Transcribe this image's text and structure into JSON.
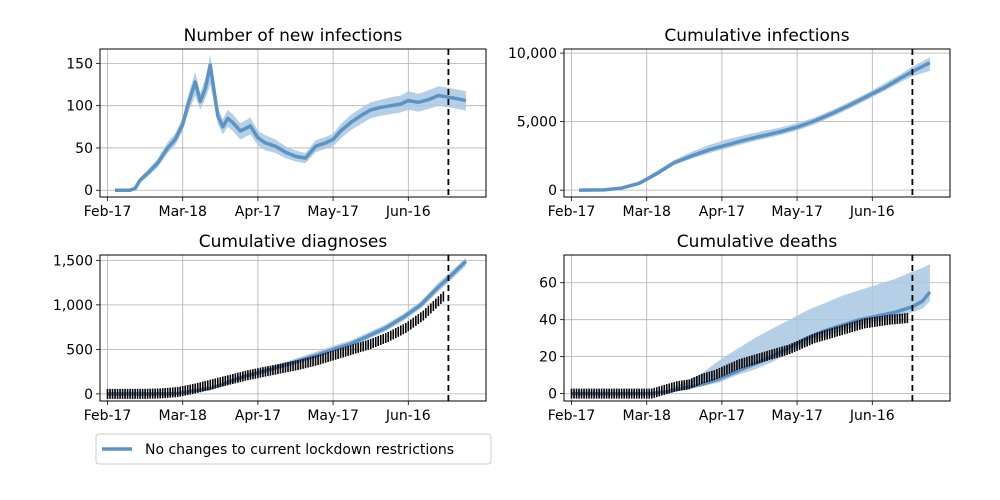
{
  "colors": {
    "model_line": "#5b93c5",
    "model_band": "#a8c8e2",
    "observed": "#000000",
    "grid": "#b0b0b0",
    "axis": "#000000",
    "marker_line": "#000000"
  },
  "legend": {
    "label": "No changes to current lockdown restrictions",
    "placement": "bottom-left"
  },
  "chart_data": [
    {
      "type": "line",
      "title": "Number of new infections",
      "x_ticks": [
        "Feb-17",
        "Mar-18",
        "Apr-17",
        "May-17",
        "Jun-16"
      ],
      "y_ticks": [
        "0",
        "50",
        "100",
        "150"
      ],
      "x_range": [
        "2020-02-17",
        "2020-07-09"
      ],
      "ylim": [
        -8,
        167
      ],
      "grid": true,
      "vline_date": "2020-07-02",
      "series": [
        {
          "name": "No changes to current lockdown restrictions",
          "x": [
            "2020-02-20",
            "2020-02-26",
            "2020-02-28",
            "2020-03-01",
            "2020-03-04",
            "2020-03-08",
            "2020-03-12",
            "2020-03-15",
            "2020-03-18",
            "2020-03-20",
            "2020-03-23",
            "2020-03-25",
            "2020-03-27",
            "2020-03-29",
            "2020-04-01",
            "2020-04-03",
            "2020-04-05",
            "2020-04-07",
            "2020-04-10",
            "2020-04-14",
            "2020-04-17",
            "2020-04-20",
            "2020-04-24",
            "2020-04-28",
            "2020-05-02",
            "2020-05-06",
            "2020-05-10",
            "2020-05-14",
            "2020-05-17",
            "2020-05-20",
            "2020-05-24",
            "2020-05-28",
            "2020-06-01",
            "2020-06-05",
            "2020-06-09",
            "2020-06-13",
            "2020-06-16",
            "2020-06-20",
            "2020-06-24",
            "2020-06-28",
            "2020-07-02",
            "2020-07-06",
            "2020-07-09"
          ],
          "values": [
            0,
            0,
            2,
            12,
            20,
            32,
            50,
            60,
            78,
            100,
            128,
            105,
            120,
            148,
            88,
            75,
            85,
            80,
            70,
            76,
            62,
            56,
            52,
            45,
            40,
            38,
            52,
            56,
            60,
            70,
            80,
            88,
            95,
            98,
            100,
            102,
            106,
            104,
            107,
            112,
            110,
            108,
            106
          ],
          "lower": [
            0,
            0,
            1,
            9,
            16,
            27,
            44,
            53,
            70,
            90,
            112,
            95,
            108,
            125,
            78,
            66,
            75,
            70,
            60,
            66,
            53,
            47,
            44,
            38,
            34,
            32,
            45,
            49,
            52,
            61,
            71,
            78,
            85,
            88,
            90,
            92,
            95,
            93,
            96,
            100,
            98,
            96,
            94
          ],
          "upper": [
            0,
            0,
            3,
            15,
            24,
            37,
            57,
            67,
            86,
            110,
            140,
            115,
            132,
            160,
            98,
            84,
            95,
            90,
            79,
            86,
            70,
            65,
            60,
            52,
            47,
            44,
            59,
            63,
            67,
            78,
            89,
            97,
            104,
            107,
            110,
            112,
            117,
            114,
            118,
            123,
            121,
            119,
            117
          ]
        }
      ],
      "observed": null
    },
    {
      "type": "line",
      "title": "Cumulative infections",
      "x_ticks": [
        "Feb-17",
        "Mar-18",
        "Apr-17",
        "May-17",
        "Jun-16"
      ],
      "y_ticks": [
        "0",
        "5,000",
        "10,000"
      ],
      "x_range": [
        "2020-02-17",
        "2020-07-09"
      ],
      "ylim": [
        -500,
        10300
      ],
      "grid": true,
      "vline_date": "2020-07-02",
      "series": [
        {
          "name": "No changes to current lockdown restrictions",
          "x": [
            "2020-02-20",
            "2020-03-01",
            "2020-03-08",
            "2020-03-15",
            "2020-03-22",
            "2020-03-29",
            "2020-04-05",
            "2020-04-12",
            "2020-04-19",
            "2020-04-26",
            "2020-05-03",
            "2020-05-10",
            "2020-05-17",
            "2020-05-24",
            "2020-05-31",
            "2020-06-07",
            "2020-06-14",
            "2020-06-21",
            "2020-06-28",
            "2020-07-02",
            "2020-07-09"
          ],
          "values": [
            0,
            20,
            150,
            500,
            1200,
            2000,
            2500,
            2950,
            3300,
            3650,
            3950,
            4250,
            4600,
            5050,
            5600,
            6200,
            6850,
            7500,
            8250,
            8650,
            9300
          ],
          "lower": [
            0,
            15,
            120,
            420,
            1050,
            1850,
            2300,
            2700,
            3050,
            3400,
            3700,
            4000,
            4350,
            4800,
            5350,
            5950,
            6600,
            7250,
            7950,
            8300,
            8700
          ],
          "upper": [
            0,
            25,
            180,
            600,
            1400,
            2200,
            2800,
            3300,
            3700,
            4000,
            4300,
            4550,
            4900,
            5300,
            5850,
            6450,
            7100,
            7800,
            8550,
            9000,
            9700
          ]
        }
      ],
      "observed": null
    },
    {
      "type": "line",
      "title": "Cumulative diagnoses",
      "x_ticks": [
        "Feb-17",
        "Mar-18",
        "Apr-17",
        "May-17",
        "Jun-16"
      ],
      "y_ticks": [
        "0",
        "500",
        "1,000",
        "1,500"
      ],
      "x_range": [
        "2020-02-17",
        "2020-07-09"
      ],
      "ylim": [
        -80,
        1560
      ],
      "grid": true,
      "vline_date": "2020-07-02",
      "series": [
        {
          "name": "No changes to current lockdown restrictions",
          "x": [
            "2020-02-17",
            "2020-03-01",
            "2020-03-15",
            "2020-03-29",
            "2020-04-05",
            "2020-04-12",
            "2020-04-19",
            "2020-04-26",
            "2020-05-03",
            "2020-05-10",
            "2020-05-17",
            "2020-05-24",
            "2020-05-31",
            "2020-06-07",
            "2020-06-14",
            "2020-06-21",
            "2020-06-28",
            "2020-07-02",
            "2020-07-09"
          ],
          "values": [
            0,
            0,
            2,
            60,
            130,
            200,
            250,
            310,
            370,
            430,
            500,
            560,
            650,
            740,
            860,
            1000,
            1200,
            1300,
            1490
          ],
          "lower": [
            0,
            0,
            1,
            45,
            110,
            180,
            230,
            285,
            340,
            400,
            470,
            530,
            615,
            705,
            820,
            960,
            1150,
            1250,
            1440
          ],
          "upper": [
            0,
            0,
            3,
            75,
            150,
            220,
            275,
            340,
            405,
            470,
            540,
            600,
            690,
            780,
            900,
            1040,
            1250,
            1350,
            1530
          ]
        }
      ],
      "observed": {
        "x": [
          "2020-02-17",
          "2020-02-24",
          "2020-03-02",
          "2020-03-09",
          "2020-03-16",
          "2020-03-23",
          "2020-03-30",
          "2020-04-06",
          "2020-04-13",
          "2020-04-20",
          "2020-04-27",
          "2020-05-04",
          "2020-05-11",
          "2020-05-18",
          "2020-05-25",
          "2020-06-01",
          "2020-06-08",
          "2020-06-15",
          "2020-06-22",
          "2020-07-01"
        ],
        "values": [
          0,
          0,
          0,
          5,
          20,
          60,
          110,
          160,
          210,
          250,
          290,
          330,
          380,
          440,
          500,
          560,
          640,
          740,
          880,
          1120
        ]
      }
    },
    {
      "type": "line",
      "title": "Cumulative deaths",
      "x_ticks": [
        "Feb-17",
        "Mar-18",
        "Apr-17",
        "May-17",
        "Jun-16"
      ],
      "y_ticks": [
        "0",
        "20",
        "40",
        "60"
      ],
      "x_range": [
        "2020-02-17",
        "2020-07-09"
      ],
      "ylim": [
        -4,
        75
      ],
      "grid": true,
      "vline_date": "2020-07-02",
      "series": [
        {
          "name": "No changes to current lockdown restrictions",
          "x": [
            "2020-02-17",
            "2020-03-20",
            "2020-03-26",
            "2020-04-02",
            "2020-04-09",
            "2020-04-16",
            "2020-04-23",
            "2020-04-30",
            "2020-05-07",
            "2020-05-14",
            "2020-05-21",
            "2020-05-28",
            "2020-06-04",
            "2020-06-11",
            "2020-06-18",
            "2020-06-25",
            "2020-07-02",
            "2020-07-06",
            "2020-07-09"
          ],
          "values": [
            0,
            0,
            1,
            3,
            5,
            8,
            12,
            16,
            20,
            25,
            30,
            34,
            37,
            40,
            42,
            44,
            47,
            50,
            55
          ],
          "lower": [
            0,
            0,
            0,
            2,
            4,
            6,
            10,
            13,
            17,
            22,
            27,
            31,
            34,
            37,
            39,
            41,
            44,
            46,
            50
          ],
          "upper": [
            0,
            0,
            2,
            6,
            11,
            18,
            24,
            30,
            35,
            40,
            45,
            49,
            53,
            56,
            59,
            62,
            66,
            68,
            70
          ]
        }
      ],
      "observed": {
        "x": [
          "2020-02-17",
          "2020-03-20",
          "2020-03-25",
          "2020-03-30",
          "2020-04-04",
          "2020-04-09",
          "2020-04-14",
          "2020-04-19",
          "2020-04-24",
          "2020-04-29",
          "2020-05-04",
          "2020-05-09",
          "2020-05-14",
          "2020-05-19",
          "2020-05-24",
          "2020-05-29",
          "2020-06-03",
          "2020-06-08",
          "2020-06-13",
          "2020-06-18",
          "2020-06-23",
          "2020-07-01"
        ],
        "values": [
          0,
          0,
          2,
          4,
          5,
          8,
          10,
          13,
          16,
          18,
          20,
          22,
          24,
          27,
          30,
          32,
          34,
          36,
          38,
          39,
          40,
          41
        ]
      }
    }
  ]
}
